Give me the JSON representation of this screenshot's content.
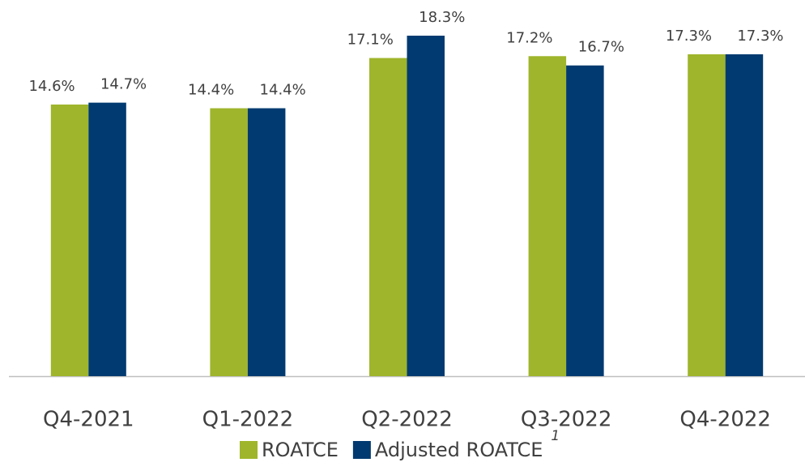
{
  "chart_data": {
    "type": "bar",
    "categories": [
      "Q4-2021",
      "Q1-2022",
      "Q2-2022",
      "Q3-2022",
      "Q4-2022"
    ],
    "series": [
      {
        "name": "ROATCE",
        "color": "#9fb52b",
        "values": [
          14.6,
          14.4,
          17.1,
          17.2,
          17.3
        ],
        "value_labels": [
          "14.6%",
          "14.4%",
          "17.1%",
          "17.2%",
          "17.3%"
        ]
      },
      {
        "name": "Adjusted ROATCE",
        "color": "#003a70",
        "values": [
          14.7,
          14.4,
          18.3,
          16.7,
          17.3
        ],
        "value_labels": [
          "14.7%",
          "14.4%",
          "18.3%",
          "16.7%",
          "17.3%"
        ]
      }
    ],
    "legend_note": "1",
    "ylim": [
      0,
      20
    ]
  }
}
